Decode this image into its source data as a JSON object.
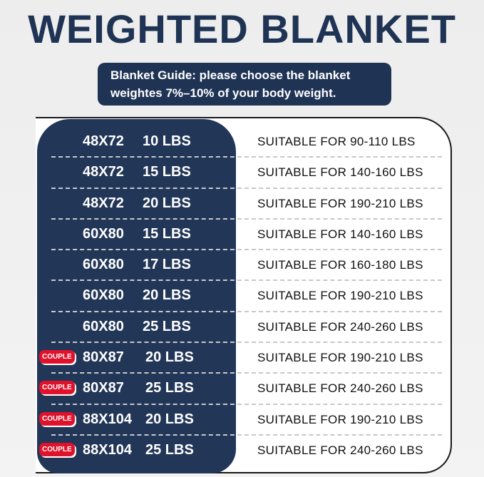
{
  "title": "WEIGHTED BLANKET",
  "guide": {
    "line1": "Blanket Guide: please choose the blanket",
    "line2": "weightes 7%–10% of your body weight."
  },
  "colors": {
    "navy": "#223658",
    "badge": "#e0122b"
  },
  "rows": [
    {
      "badge": "",
      "size": "48X72",
      "weight": "10 LBS",
      "suitable": "SUITABLE FOR 90-110 LBS"
    },
    {
      "badge": "",
      "size": "48X72",
      "weight": "15 LBS",
      "suitable": "SUITABLE FOR 140-160 LBS"
    },
    {
      "badge": "",
      "size": "48X72",
      "weight": "20 LBS",
      "suitable": "SUITABLE FOR 190-210 LBS"
    },
    {
      "badge": "",
      "size": "60X80",
      "weight": "15 LBS",
      "suitable": "SUITABLE FOR 140-160 LBS"
    },
    {
      "badge": "",
      "size": "60X80",
      "weight": "17 LBS",
      "suitable": "SUITABLE FOR 160-180 LBS"
    },
    {
      "badge": "",
      "size": "60X80",
      "weight": "20 LBS",
      "suitable": "SUITABLE FOR 190-210 LBS"
    },
    {
      "badge": "",
      "size": "60X80",
      "weight": "25 LBS",
      "suitable": "SUITABLE FOR 240-260 LBS"
    },
    {
      "badge": "COUPLE",
      "size": "80X87",
      "weight": "20 LBS",
      "suitable": "SUITABLE FOR 190-210 LBS"
    },
    {
      "badge": "COUPLE",
      "size": "80X87",
      "weight": "25 LBS",
      "suitable": "SUITABLE FOR 240-260 LBS"
    },
    {
      "badge": "COUPLE",
      "size": "88X104",
      "weight": "20 LBS",
      "suitable": "SUITABLE FOR 190-210 LBS"
    },
    {
      "badge": "COUPLE",
      "size": "88X104",
      "weight": "25 LBS",
      "suitable": "SUITABLE FOR 240-260 LBS"
    }
  ]
}
